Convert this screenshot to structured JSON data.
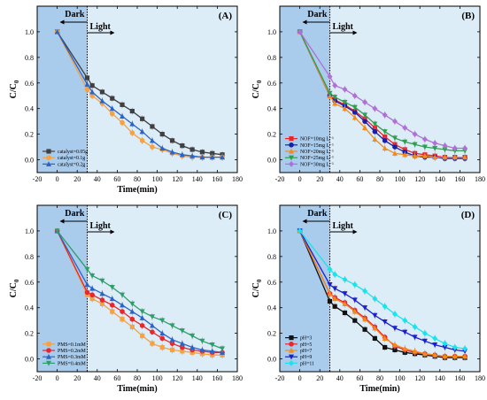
{
  "chart_data": [
    {
      "type": "line",
      "panel_label": "(A)",
      "xlabel": "Time(min)",
      "ylabel_main": "C/C",
      "ylabel_sub": "0",
      "xlim": [
        -20,
        180
      ],
      "ylim": [
        -0.1,
        1.2
      ],
      "xticks": [
        "-20",
        "0",
        "20",
        "40",
        "60",
        "80",
        "100",
        "120",
        "140",
        "160",
        "180"
      ],
      "yticks": [
        "0.0",
        "0.2",
        "0.4",
        "0.6",
        "0.8",
        "1.0"
      ],
      "dark_label": "Dark",
      "light_label": "Light",
      "dark_end": 30,
      "legend_position": "bottom-left",
      "x": [
        0,
        30,
        35,
        45,
        55,
        65,
        75,
        85,
        95,
        105,
        115,
        125,
        135,
        145,
        155,
        165
      ],
      "series": [
        {
          "name": "catalyst=0.05g",
          "color": "#404040",
          "marker": "square",
          "values": [
            1.0,
            0.64,
            0.58,
            0.53,
            0.48,
            0.43,
            0.38,
            0.32,
            0.26,
            0.2,
            0.15,
            0.11,
            0.08,
            0.06,
            0.05,
            0.04
          ]
        },
        {
          "name": "catalyst=0.1g",
          "color": "#f4a244",
          "marker": "circle",
          "values": [
            1.0,
            0.55,
            0.5,
            0.44,
            0.36,
            0.29,
            0.21,
            0.15,
            0.1,
            0.08,
            0.05,
            0.03,
            0.02,
            0.02,
            0.02,
            0.02
          ]
        },
        {
          "name": "catalyst=0.2g",
          "color": "#2b64c8",
          "marker": "triangle",
          "values": [
            1.0,
            0.59,
            0.53,
            0.46,
            0.4,
            0.34,
            0.28,
            0.22,
            0.15,
            0.09,
            0.06,
            0.04,
            0.03,
            0.02,
            0.02,
            0.02
          ]
        }
      ]
    },
    {
      "type": "line",
      "panel_label": "(B)",
      "xlabel": "",
      "ylabel_main": "C/C",
      "ylabel_sub": "0",
      "xlim": [
        -20,
        180
      ],
      "ylim": [
        -0.1,
        1.2
      ],
      "xticks": [
        "-20",
        "0",
        "20",
        "40",
        "60",
        "80",
        "100",
        "120",
        "140",
        "160",
        "180"
      ],
      "yticks": [
        "0.0",
        "0.2",
        "0.4",
        "0.6",
        "0.8",
        "1.0"
      ],
      "dark_label": "Dark",
      "light_label": "Light",
      "dark_end": 30,
      "legend_position": "bottom-left",
      "x": [
        0,
        30,
        35,
        45,
        55,
        65,
        75,
        85,
        95,
        105,
        115,
        125,
        135,
        145,
        155,
        165
      ],
      "series": [
        {
          "name": "NOF=10mg L⁻¹",
          "color": "#e8262c",
          "marker": "square",
          "values": [
            1.0,
            0.5,
            0.47,
            0.43,
            0.38,
            0.32,
            0.25,
            0.18,
            0.12,
            0.08,
            0.05,
            0.04,
            0.03,
            0.02,
            0.02,
            0.02
          ]
        },
        {
          "name": "NOF=15mg L⁻¹",
          "color": "#1a1fa8",
          "marker": "circle",
          "values": [
            1.0,
            0.5,
            0.46,
            0.42,
            0.37,
            0.3,
            0.22,
            0.15,
            0.1,
            0.06,
            0.03,
            0.02,
            0.02,
            0.01,
            0.01,
            0.01
          ]
        },
        {
          "name": "NOF=20mg L⁻¹",
          "color": "#f28a1e",
          "marker": "triangle",
          "values": [
            1.0,
            0.5,
            0.44,
            0.4,
            0.33,
            0.25,
            0.16,
            0.09,
            0.05,
            0.04,
            0.03,
            0.03,
            0.02,
            0.02,
            0.02,
            0.02
          ]
        },
        {
          "name": "NOF=25mg L⁻¹",
          "color": "#2e9e50",
          "marker": "down-triangle",
          "values": [
            1.0,
            0.52,
            0.49,
            0.45,
            0.41,
            0.35,
            0.28,
            0.22,
            0.17,
            0.14,
            0.12,
            0.1,
            0.09,
            0.08,
            0.07,
            0.07
          ]
        },
        {
          "name": "NOF=30mg L⁻¹",
          "color": "#b070d6",
          "marker": "diamond",
          "values": [
            1.0,
            0.65,
            0.58,
            0.55,
            0.5,
            0.45,
            0.4,
            0.35,
            0.3,
            0.25,
            0.2,
            0.16,
            0.13,
            0.11,
            0.09,
            0.09
          ]
        }
      ]
    },
    {
      "type": "line",
      "panel_label": "(C)",
      "xlabel": "Time(min)",
      "ylabel_main": "C/C",
      "ylabel_sub": "0",
      "xlim": [
        -20,
        180
      ],
      "ylim": [
        -0.1,
        1.2
      ],
      "xticks": [
        "-20",
        "0",
        "20",
        "40",
        "60",
        "80",
        "100",
        "120",
        "140",
        "160",
        "180"
      ],
      "yticks": [
        "0.0",
        "0.2",
        "0.4",
        "0.6",
        "0.8",
        "1.0"
      ],
      "dark_label": "Dark",
      "light_label": "Light",
      "dark_end": 30,
      "legend_position": "bottom-left",
      "x": [
        0,
        30,
        35,
        45,
        55,
        65,
        75,
        85,
        95,
        105,
        115,
        125,
        135,
        145,
        155,
        165
      ],
      "series": [
        {
          "name": "PMS=0.1mM",
          "color": "#f4a244",
          "marker": "square",
          "values": [
            1.0,
            0.5,
            0.47,
            0.43,
            0.37,
            0.31,
            0.25,
            0.18,
            0.12,
            0.09,
            0.07,
            0.06,
            0.05,
            0.04,
            0.03,
            0.03
          ]
        },
        {
          "name": "PMS=0.2mM",
          "color": "#e8262c",
          "marker": "circle",
          "values": [
            1.0,
            0.52,
            0.5,
            0.46,
            0.42,
            0.37,
            0.31,
            0.26,
            0.21,
            0.16,
            0.12,
            0.09,
            0.07,
            0.06,
            0.05,
            0.05
          ]
        },
        {
          "name": "PMS=0.3mM",
          "color": "#2b64c8",
          "marker": "triangle",
          "values": [
            1.0,
            0.58,
            0.55,
            0.51,
            0.47,
            0.42,
            0.37,
            0.32,
            0.26,
            0.2,
            0.15,
            0.12,
            0.09,
            0.07,
            0.06,
            0.05
          ]
        },
        {
          "name": "PMS=0.4mM",
          "color": "#2e9e6a",
          "marker": "down-triangle",
          "values": [
            1.0,
            0.7,
            0.65,
            0.61,
            0.56,
            0.5,
            0.43,
            0.37,
            0.33,
            0.3,
            0.26,
            0.22,
            0.18,
            0.14,
            0.11,
            0.08
          ]
        }
      ]
    },
    {
      "type": "line",
      "panel_label": "(D)",
      "xlabel": "Time(min)",
      "ylabel_main": "C/C",
      "ylabel_sub": "0",
      "xlim": [
        -20,
        180
      ],
      "ylim": [
        -0.1,
        1.2
      ],
      "xticks": [
        "-20",
        "0",
        "20",
        "40",
        "60",
        "80",
        "100",
        "120",
        "140",
        "160",
        "180"
      ],
      "yticks": [
        "0.0",
        "0.2",
        "0.4",
        "0.6",
        "0.8",
        "1.0"
      ],
      "dark_label": "Dark",
      "light_label": "Light",
      "dark_end": 30,
      "legend_position": "bottom-left",
      "x": [
        0,
        30,
        35,
        45,
        55,
        65,
        75,
        85,
        95,
        105,
        115,
        125,
        135,
        145,
        155,
        165
      ],
      "series": [
        {
          "name": "pH=3",
          "color": "#111111",
          "marker": "square",
          "values": [
            1.0,
            0.45,
            0.41,
            0.36,
            0.3,
            0.23,
            0.16,
            0.09,
            0.07,
            0.05,
            0.04,
            0.03,
            0.02,
            0.01,
            0.01,
            0.01
          ]
        },
        {
          "name": "pH=5",
          "color": "#e8262c",
          "marker": "circle",
          "values": [
            1.0,
            0.51,
            0.48,
            0.44,
            0.38,
            0.32,
            0.25,
            0.17,
            0.1,
            0.07,
            0.05,
            0.04,
            0.03,
            0.02,
            0.02,
            0.02
          ]
        },
        {
          "name": "pH=7",
          "color": "#f28a1e",
          "marker": "triangle",
          "values": [
            1.0,
            0.51,
            0.47,
            0.43,
            0.37,
            0.31,
            0.24,
            0.16,
            0.11,
            0.08,
            0.06,
            0.04,
            0.03,
            0.02,
            0.02,
            0.02
          ]
        },
        {
          "name": "pH=9",
          "color": "#1a1fd0",
          "marker": "down-triangle",
          "values": [
            1.0,
            0.58,
            0.55,
            0.51,
            0.46,
            0.4,
            0.34,
            0.29,
            0.24,
            0.21,
            0.17,
            0.14,
            0.11,
            0.09,
            0.07,
            0.06
          ]
        },
        {
          "name": "pH=11",
          "color": "#19e3ec",
          "marker": "diamond",
          "values": [
            1.0,
            0.7,
            0.66,
            0.62,
            0.58,
            0.53,
            0.47,
            0.41,
            0.35,
            0.3,
            0.25,
            0.2,
            0.16,
            0.12,
            0.09,
            0.08
          ]
        }
      ]
    }
  ]
}
